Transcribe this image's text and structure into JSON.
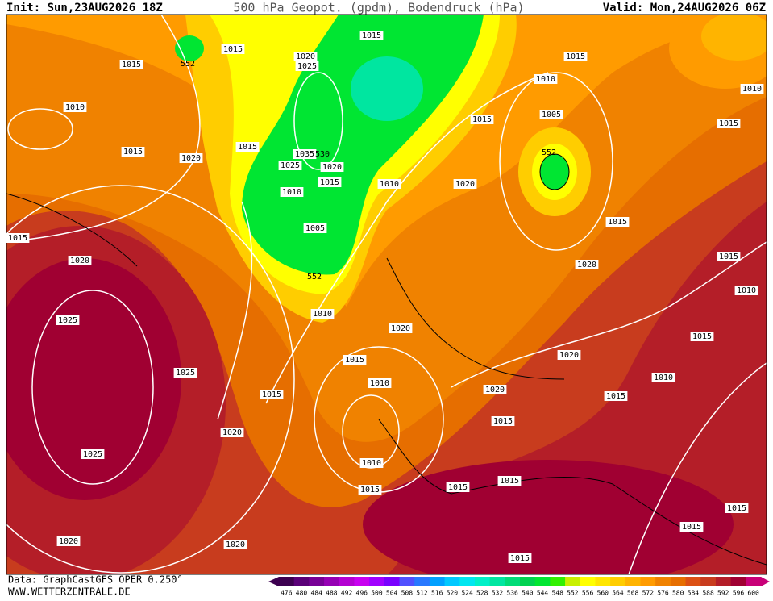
{
  "header": {
    "init": "Init: Sun,23AUG2026 18Z",
    "title": "500 hPa Geopot. (gpdm), Bodendruck (hPa)",
    "valid": "Valid: Mon,24AUG2026 06Z"
  },
  "map": {
    "labels": [
      "1015",
      "1015",
      "1015",
      "552",
      "1020",
      "1025",
      "1010",
      "1015",
      "1020",
      "1015",
      "1035",
      "530",
      "1025",
      "1020",
      "1015",
      "1010",
      "1010",
      "1005",
      "552",
      "1010",
      "1015",
      "1020",
      "1025",
      "1025",
      "1015",
      "1020",
      "1025",
      "1020",
      "1020",
      "1015",
      "1010",
      "1020",
      "1010",
      "1015",
      "1015",
      "1015",
      "1015",
      "1020",
      "1020",
      "1015",
      "1010",
      "1015",
      "1010",
      "1015",
      "1015",
      "1020",
      "1020",
      "1015",
      "1005",
      "552",
      "1010",
      "1015",
      "1010",
      "1015",
      "1015",
      "1015",
      "1015"
    ]
  },
  "scale": {
    "values": [
      476,
      480,
      484,
      488,
      492,
      496,
      500,
      504,
      508,
      512,
      516,
      520,
      524,
      528,
      532,
      536,
      540,
      544,
      548,
      552,
      556,
      560,
      564,
      568,
      572,
      576,
      580,
      584,
      588,
      592,
      596,
      600
    ],
    "colors": [
      "#3c0050",
      "#5a0078",
      "#780096",
      "#9600b4",
      "#b400d2",
      "#c800f0",
      "#a000ff",
      "#7800ff",
      "#5050ff",
      "#2878ff",
      "#00a0ff",
      "#00c8ff",
      "#00e6f0",
      "#00f0c8",
      "#00e6a0",
      "#00dc78",
      "#00d250",
      "#00e632",
      "#32f000",
      "#c8f000",
      "#ffff00",
      "#ffe600",
      "#ffcd00",
      "#ffb400",
      "#ff9b00",
      "#f08200",
      "#e66e00",
      "#dc5014",
      "#c83c1e",
      "#b41e28",
      "#a00032",
      "#c80078"
    ]
  },
  "footer": {
    "data": "Data: GraphCastGFS OPER 0.250°",
    "site": "WWW.WETTERZENTRALE.DE"
  }
}
